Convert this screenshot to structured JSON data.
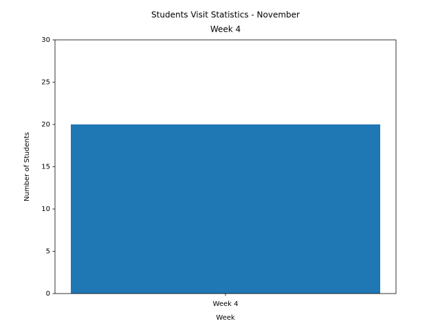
{
  "chart_data": {
    "type": "bar",
    "title": [
      "Students Visit Statistics - November",
      "Week 4"
    ],
    "x_label": "Week",
    "y_label": "Number of Students",
    "categories": [
      "Week 4"
    ],
    "values": [
      20
    ],
    "color": "#1f77b4",
    "ylim": [
      0,
      30
    ],
    "yticks": [
      0,
      5,
      10,
      15,
      20,
      25,
      30
    ],
    "grid": false
  }
}
